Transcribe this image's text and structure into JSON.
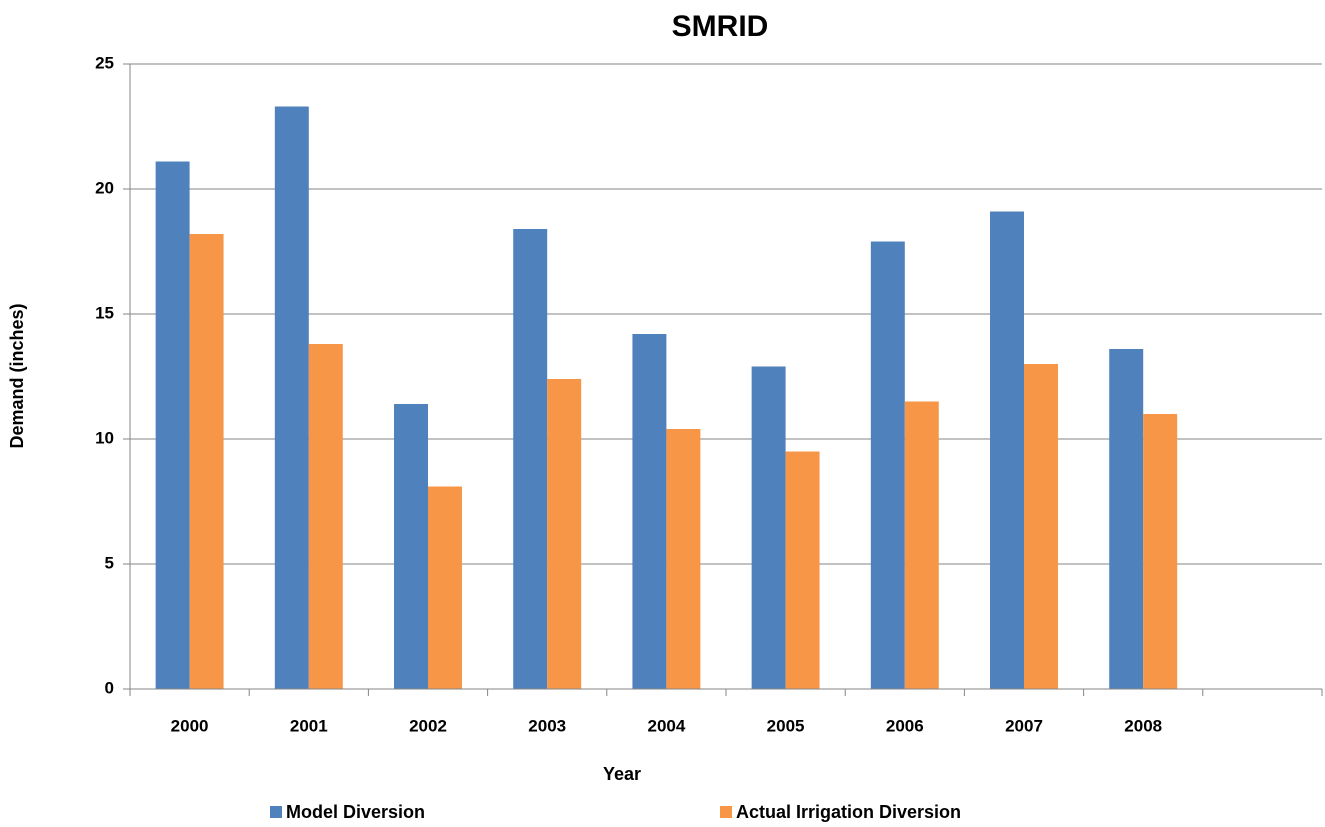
{
  "chart_data": {
    "type": "bar",
    "title": "SMRID",
    "x_label": "Year",
    "y_label": "Demand (inches)",
    "categories": [
      "2000",
      "2001",
      "2002",
      "2003",
      "2004",
      "2005",
      "2006",
      "2007",
      "2008",
      null
    ],
    "series": [
      {
        "name": "Model Diversion",
        "color": "#4f81bd",
        "values": [
          21.1,
          23.3,
          11.4,
          18.4,
          14.2,
          12.9,
          17.9,
          19.1,
          13.6,
          null
        ]
      },
      {
        "name": "Actual Irrigation Diversion",
        "color": "#f79646",
        "values": [
          18.2,
          13.8,
          8.1,
          12.4,
          10.4,
          9.5,
          11.5,
          13.0,
          11.0,
          null
        ]
      }
    ],
    "ylim": [
      0,
      25
    ],
    "yticks": [
      0,
      5,
      10,
      15,
      20,
      25
    ],
    "grid": true,
    "legend": "bottom"
  }
}
